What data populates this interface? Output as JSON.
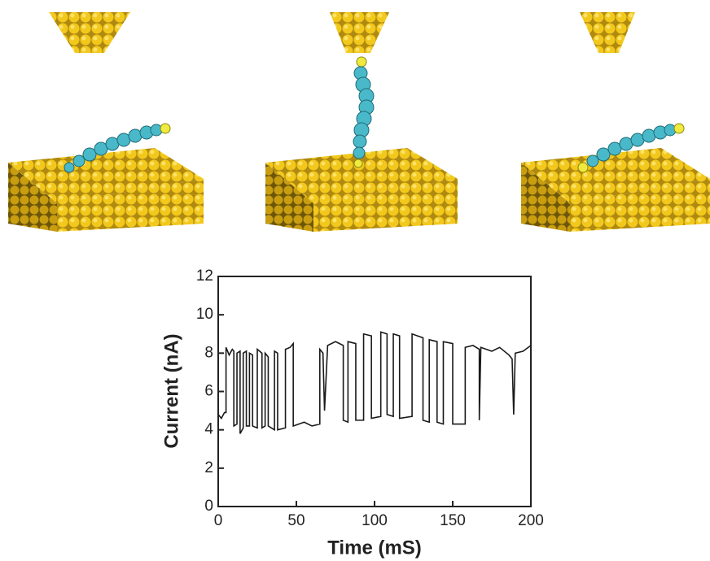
{
  "chart_data": {
    "type": "line",
    "x_label": "Time (mS)",
    "y_label": "Current (nA)",
    "color": "#1a1a1a",
    "xlim": [
      0,
      200
    ],
    "xticks": [
      0,
      50,
      100,
      150,
      200
    ],
    "ylim": [
      0,
      12
    ],
    "yticks": [
      0,
      2,
      4,
      6,
      8,
      10,
      12
    ],
    "x": [
      0,
      2,
      4,
      5,
      5,
      7,
      9,
      10,
      10,
      12,
      12,
      14,
      14,
      16,
      16,
      18,
      18,
      20,
      20,
      22,
      22,
      25,
      25,
      28,
      28,
      30,
      30,
      32,
      32,
      36,
      36,
      38,
      38,
      43,
      43,
      46,
      48,
      48,
      55,
      60,
      65,
      65,
      67,
      68,
      70,
      75,
      80,
      80,
      83,
      83,
      88,
      88,
      93,
      93,
      98,
      98,
      104,
      104,
      108,
      108,
      112,
      112,
      116,
      116,
      124,
      124,
      131,
      131,
      135,
      135,
      140,
      140,
      144,
      144,
      150,
      150,
      158,
      158,
      163,
      167,
      167,
      168,
      175,
      180,
      186,
      188,
      189,
      190,
      195,
      200
    ],
    "values": [
      4.8,
      4.6,
      4.9,
      4.9,
      8.3,
      7.9,
      8.2,
      8.1,
      4.2,
      4.3,
      8.0,
      8.1,
      3.8,
      4.1,
      8.0,
      8.1,
      4.2,
      4.2,
      8.0,
      7.9,
      4.2,
      4.1,
      8.2,
      8.0,
      4.1,
      4.2,
      8.0,
      7.8,
      4.2,
      4.0,
      8.1,
      8.0,
      4.0,
      4.1,
      8.2,
      8.3,
      8.5,
      4.2,
      4.4,
      4.2,
      4.3,
      8.2,
      8.0,
      5.0,
      8.4,
      8.6,
      8.4,
      4.5,
      4.4,
      8.6,
      8.5,
      4.5,
      4.5,
      9.0,
      8.9,
      4.6,
      4.7,
      9.1,
      9.0,
      4.8,
      4.7,
      9.0,
      8.9,
      4.6,
      4.7,
      9.0,
      8.8,
      4.5,
      4.4,
      8.7,
      8.6,
      4.4,
      4.3,
      8.6,
      8.5,
      4.3,
      4.3,
      8.3,
      8.4,
      8.2,
      4.5,
      8.3,
      8.1,
      8.3,
      7.9,
      7.7,
      4.8,
      8.0,
      8.1,
      8.4
    ]
  }
}
